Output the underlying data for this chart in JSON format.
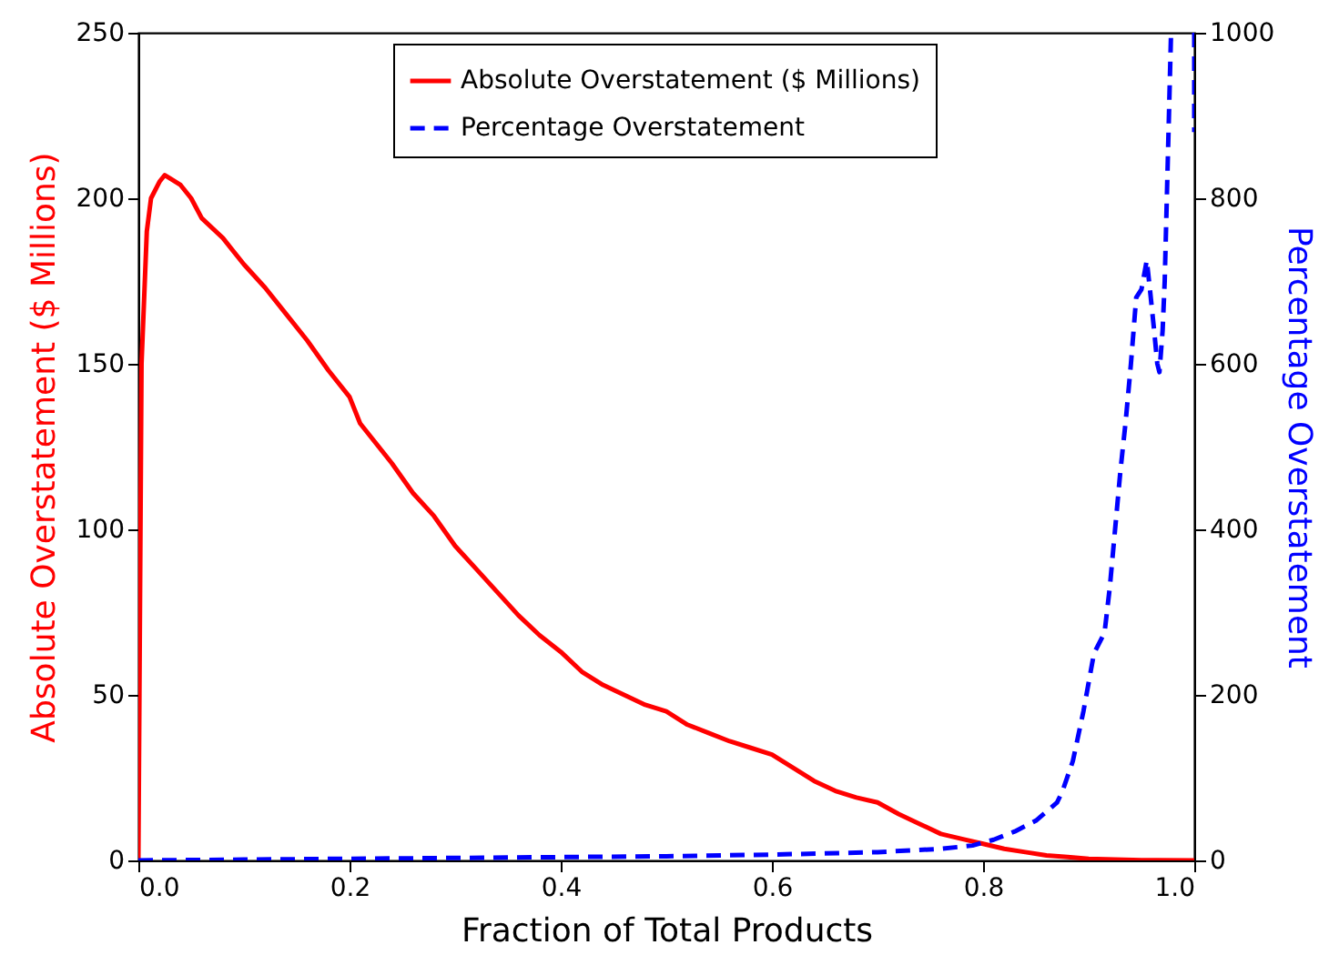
{
  "chart_data": {
    "type": "line",
    "xlabel": "Fraction of Total Products",
    "ylabel": "Absolute Overstatement ($ Millions)",
    "y2label": "Percentage Overstatement",
    "xlim": [
      0,
      1
    ],
    "xticks": [
      {
        "value": 0,
        "label": "0.0"
      },
      {
        "value": 0.2,
        "label": "0.2"
      },
      {
        "value": 0.4,
        "label": "0.4"
      },
      {
        "value": 0.6,
        "label": "0.6"
      },
      {
        "value": 0.8,
        "label": "0.8"
      },
      {
        "value": 1,
        "label": "1.0"
      }
    ],
    "ylim": [
      0,
      250
    ],
    "yticks": [
      0,
      50,
      100,
      150,
      200,
      250
    ],
    "y2lim": [
      0,
      1000
    ],
    "y2ticks": [
      0,
      200,
      400,
      600,
      800,
      1000
    ],
    "legend": "top",
    "grid": false,
    "series": [
      {
        "name": "Absolute Overstatement ($ Millions)",
        "color": "#ff0000",
        "line_style": "solid",
        "x": [
          0,
          0.003,
          0.008,
          0.012,
          0.02,
          0.025,
          0.03,
          0.04,
          0.05,
          0.06,
          0.08,
          0.1,
          0.12,
          0.14,
          0.16,
          0.18,
          0.2,
          0.21,
          0.24,
          0.26,
          0.28,
          0.3,
          0.32,
          0.34,
          0.36,
          0.38,
          0.4,
          0.42,
          0.44,
          0.46,
          0.48,
          0.5,
          0.52,
          0.54,
          0.56,
          0.58,
          0.6,
          0.62,
          0.64,
          0.66,
          0.68,
          0.7,
          0.72,
          0.74,
          0.76,
          0.78,
          0.8,
          0.82,
          0.84,
          0.86,
          0.88,
          0.9,
          0.95,
          1.0
        ],
        "values": [
          0,
          150,
          190,
          200,
          205,
          207,
          206,
          204,
          200,
          194,
          188,
          180,
          173,
          165,
          157,
          148,
          140,
          132,
          120,
          111,
          104,
          95,
          88,
          81,
          74,
          68,
          63,
          57,
          53,
          50,
          47,
          45,
          41,
          38.5,
          36,
          34,
          32,
          28,
          24,
          21,
          19,
          17.5,
          14,
          11,
          8,
          6.5,
          5,
          3.5,
          2.5,
          1.5,
          1,
          0.5,
          0.1,
          0
        ]
      },
      {
        "name": "Percentage Overstatement",
        "color": "#0000ff",
        "line_style": "dashed",
        "axis": "y2",
        "x": [
          0,
          0.1,
          0.2,
          0.3,
          0.4,
          0.5,
          0.6,
          0.7,
          0.76,
          0.79,
          0.81,
          0.83,
          0.85,
          0.87,
          0.875,
          0.885,
          0.895,
          0.905,
          0.915,
          0.92,
          0.925,
          0.93,
          0.935,
          0.94,
          0.945,
          0.95,
          0.955,
          0.958,
          0.962,
          0.965,
          0.967,
          0.97,
          0.972,
          0.975,
          0.978,
          0.99,
          1.0,
          1.0
        ],
        "values": [
          0,
          1,
          2,
          3,
          4,
          5,
          7,
          10,
          14,
          18,
          25,
          35,
          48,
          70,
          83,
          120,
          180,
          250,
          275,
          330,
          400,
          470,
          530,
          600,
          680,
          690,
          725,
          690,
          640,
          600,
          590,
          640,
          700,
          850,
          1000,
          null,
          1000,
          880
        ]
      }
    ]
  }
}
